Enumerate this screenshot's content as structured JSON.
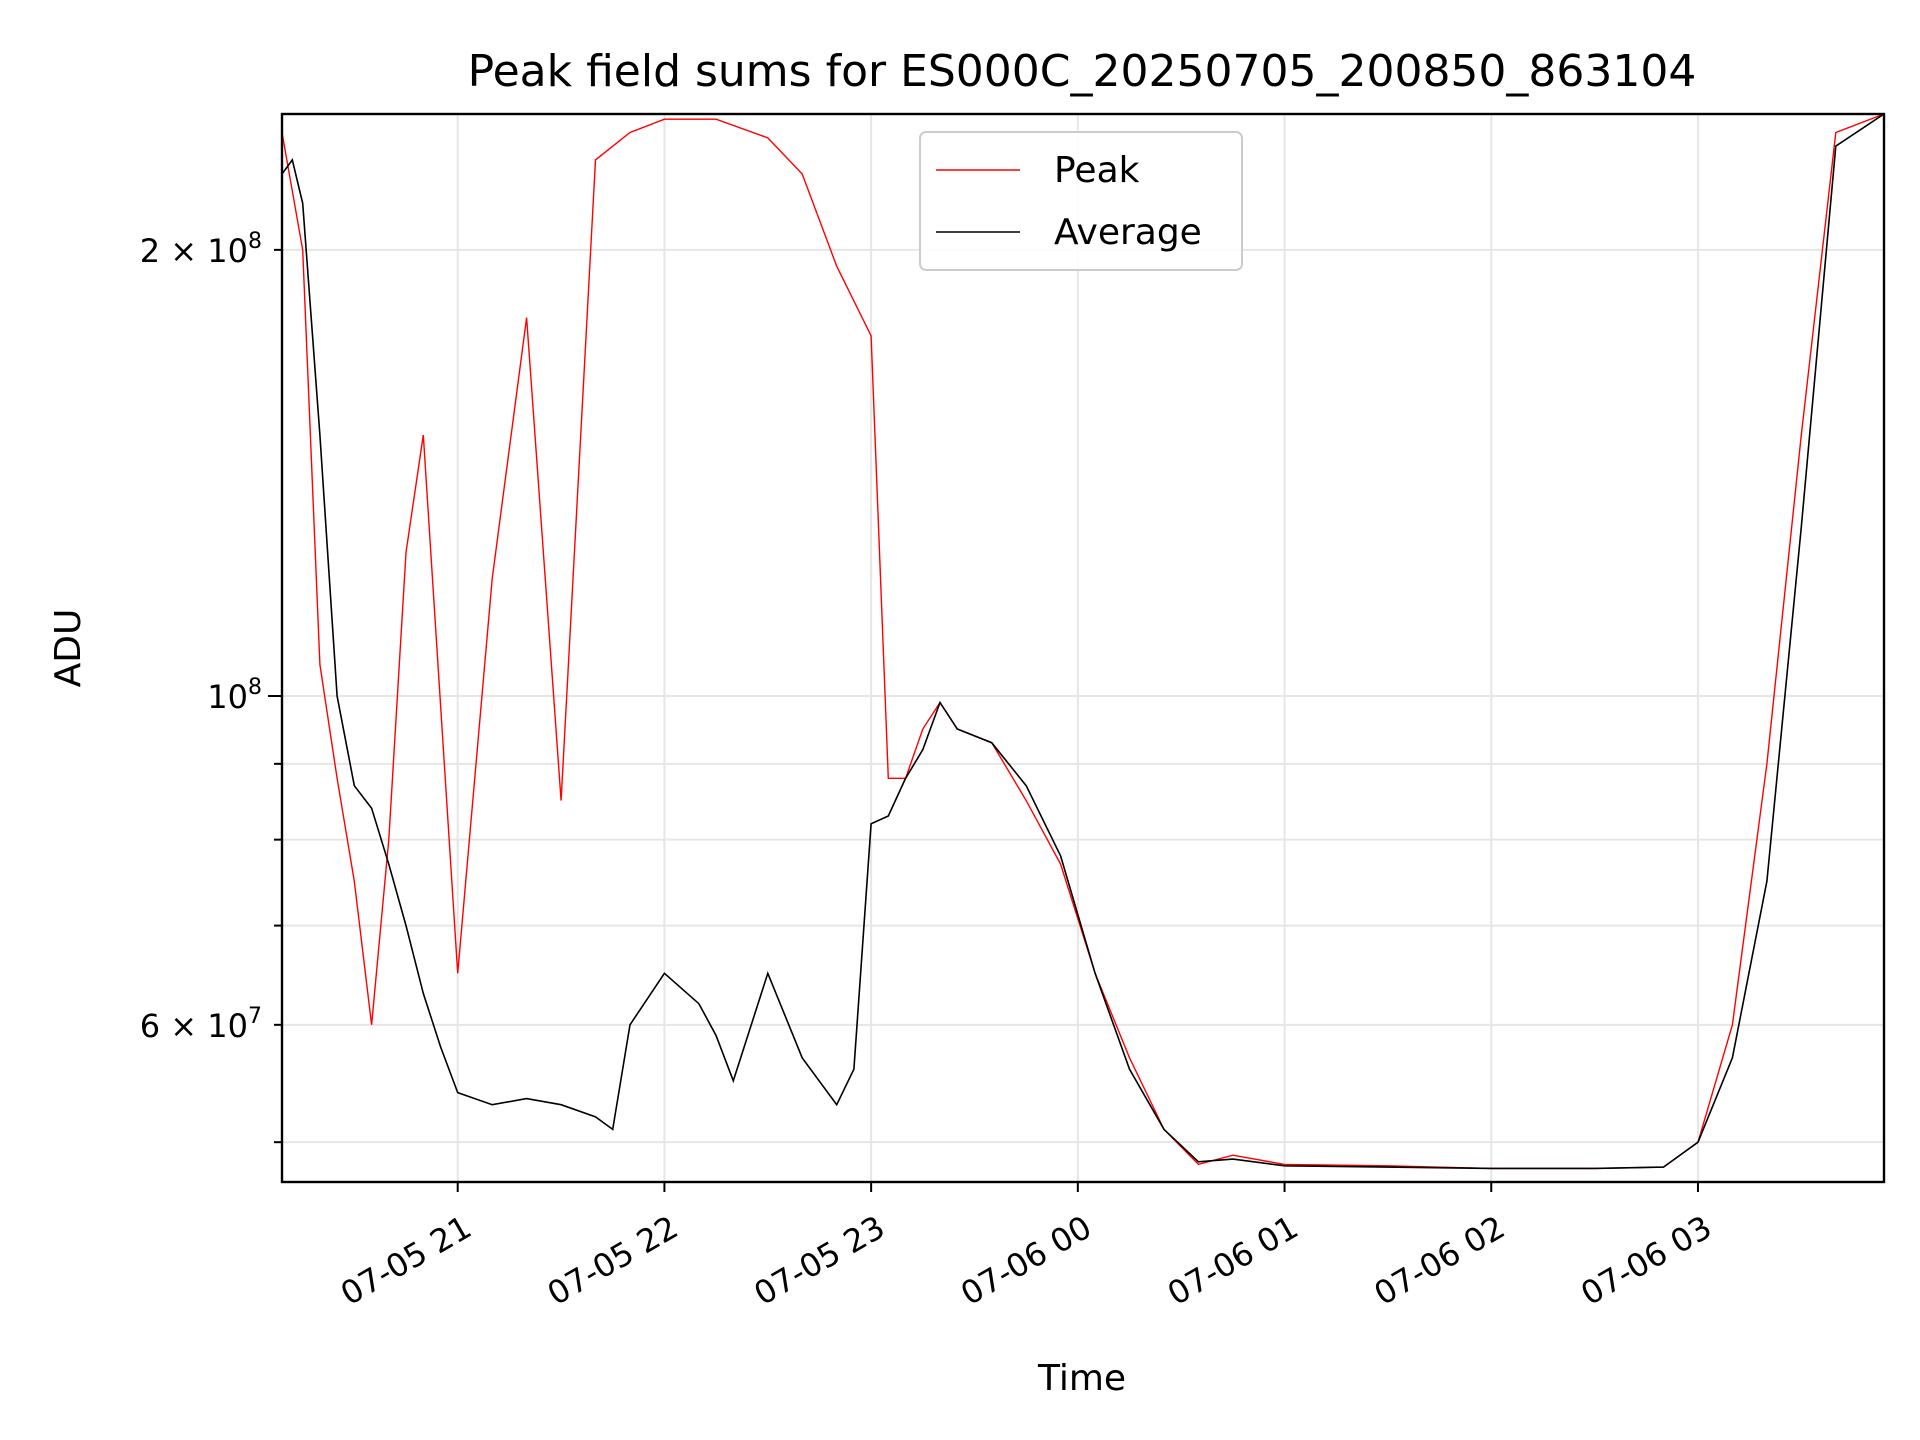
{
  "chart_data": {
    "type": "line",
    "title": "Peak field sums for ES000C_20250705_200850_863104",
    "xlabel": "Time",
    "ylabel": "ADU",
    "yscale": "log",
    "ylim": [
      47000000,
      247000000
    ],
    "xlim": [
      "2025-07-05 20:09",
      "2025-07-06 03:54"
    ],
    "grid": true,
    "legend_position": "top-center",
    "x_ticks": [
      {
        "value": "2025-07-05 21:00",
        "label": "07-05 21"
      },
      {
        "value": "2025-07-05 22:00",
        "label": "07-05 22"
      },
      {
        "value": "2025-07-05 23:00",
        "label": "07-05 23"
      },
      {
        "value": "2025-07-06 00:00",
        "label": "07-06 00"
      },
      {
        "value": "2025-07-06 01:00",
        "label": "07-06 01"
      },
      {
        "value": "2025-07-06 02:00",
        "label": "07-06 02"
      },
      {
        "value": "2025-07-06 03:00",
        "label": "07-06 03"
      }
    ],
    "y_ticks_major": [
      {
        "value": 100000000,
        "label": "10",
        "exp": "8"
      }
    ],
    "y_ticks_labeled_minor": [
      {
        "value": 200000000,
        "label": "2 × 10",
        "exp": "8"
      },
      {
        "value": 60000000,
        "label": "6 × 10",
        "exp": "7"
      }
    ],
    "y_ticks_minor": [
      50000000,
      70000000,
      80000000,
      90000000
    ],
    "series": [
      {
        "name": "Peak",
        "color": "#ff0000",
        "x": [
          "2025-07-05 20:09",
          "2025-07-05 20:15",
          "2025-07-05 20:20",
          "2025-07-05 20:25",
          "2025-07-05 20:30",
          "2025-07-05 20:35",
          "2025-07-05 20:40",
          "2025-07-05 20:45",
          "2025-07-05 20:50",
          "2025-07-05 21:00",
          "2025-07-05 21:10",
          "2025-07-05 21:20",
          "2025-07-05 21:30",
          "2025-07-05 21:40",
          "2025-07-05 21:50",
          "2025-07-05 22:00",
          "2025-07-05 22:15",
          "2025-07-05 22:30",
          "2025-07-05 22:40",
          "2025-07-05 22:50",
          "2025-07-05 23:00",
          "2025-07-05 23:05",
          "2025-07-05 23:10",
          "2025-07-05 23:15",
          "2025-07-05 23:20",
          "2025-07-05 23:25",
          "2025-07-05 23:35",
          "2025-07-05 23:45",
          "2025-07-05 23:55",
          "2025-07-06 00:05",
          "2025-07-06 00:15",
          "2025-07-06 00:25",
          "2025-07-06 00:35",
          "2025-07-06 00:45",
          "2025-07-06 01:00",
          "2025-07-06 01:30",
          "2025-07-06 02:00",
          "2025-07-06 02:30",
          "2025-07-06 02:50",
          "2025-07-06 03:00",
          "2025-07-06 03:10",
          "2025-07-06 03:20",
          "2025-07-06 03:30",
          "2025-07-06 03:40",
          "2025-07-06 03:54"
        ],
        "y": [
          240000000,
          200000000,
          105000000,
          88000000,
          75000000,
          60000000,
          80000000,
          125000000,
          150000000,
          65000000,
          120000000,
          180000000,
          85000000,
          230000000,
          240000000,
          245000000,
          245000000,
          238000000,
          225000000,
          195000000,
          175000000,
          88000000,
          88000000,
          95000000,
          99000000,
          95000000,
          93000000,
          85000000,
          77000000,
          65000000,
          57000000,
          51000000,
          48300000,
          49000000,
          48300000,
          48200000,
          48000000,
          48000000,
          48100000,
          50000000,
          60000000,
          90000000,
          150000000,
          240000000,
          247000000
        ]
      },
      {
        "name": "Average",
        "color": "#000000",
        "x": [
          "2025-07-05 20:09",
          "2025-07-05 20:12",
          "2025-07-05 20:15",
          "2025-07-05 20:20",
          "2025-07-05 20:25",
          "2025-07-05 20:30",
          "2025-07-05 20:35",
          "2025-07-05 20:40",
          "2025-07-05 20:45",
          "2025-07-05 20:50",
          "2025-07-05 20:55",
          "2025-07-05 21:00",
          "2025-07-05 21:10",
          "2025-07-05 21:20",
          "2025-07-05 21:30",
          "2025-07-05 21:40",
          "2025-07-05 21:45",
          "2025-07-05 21:50",
          "2025-07-05 22:00",
          "2025-07-05 22:10",
          "2025-07-05 22:15",
          "2025-07-05 22:20",
          "2025-07-05 22:30",
          "2025-07-05 22:40",
          "2025-07-05 22:50",
          "2025-07-05 22:55",
          "2025-07-05 23:00",
          "2025-07-05 23:05",
          "2025-07-05 23:10",
          "2025-07-05 23:15",
          "2025-07-05 23:20",
          "2025-07-05 23:25",
          "2025-07-05 23:35",
          "2025-07-05 23:45",
          "2025-07-05 23:55",
          "2025-07-06 00:05",
          "2025-07-06 00:15",
          "2025-07-06 00:25",
          "2025-07-06 00:35",
          "2025-07-06 00:45",
          "2025-07-06 01:00",
          "2025-07-06 01:30",
          "2025-07-06 02:00",
          "2025-07-06 02:30",
          "2025-07-06 02:50",
          "2025-07-06 03:00",
          "2025-07-06 03:10",
          "2025-07-06 03:20",
          "2025-07-06 03:30",
          "2025-07-06 03:40",
          "2025-07-06 03:54"
        ],
        "y": [
          225000000,
          230000000,
          215000000,
          150000000,
          100000000,
          87000000,
          84000000,
          77000000,
          70000000,
          63000000,
          58000000,
          54000000,
          53000000,
          53500000,
          53000000,
          52000000,
          51000000,
          60000000,
          65000000,
          62000000,
          59000000,
          55000000,
          65000000,
          57000000,
          53000000,
          56000000,
          82000000,
          83000000,
          88000000,
          92000000,
          99000000,
          95000000,
          93000000,
          87000000,
          78000000,
          65000000,
          56000000,
          51000000,
          48500000,
          48700000,
          48200000,
          48100000,
          48000000,
          48000000,
          48100000,
          50000000,
          57000000,
          75000000,
          130000000,
          235000000,
          247000000
        ]
      }
    ]
  }
}
